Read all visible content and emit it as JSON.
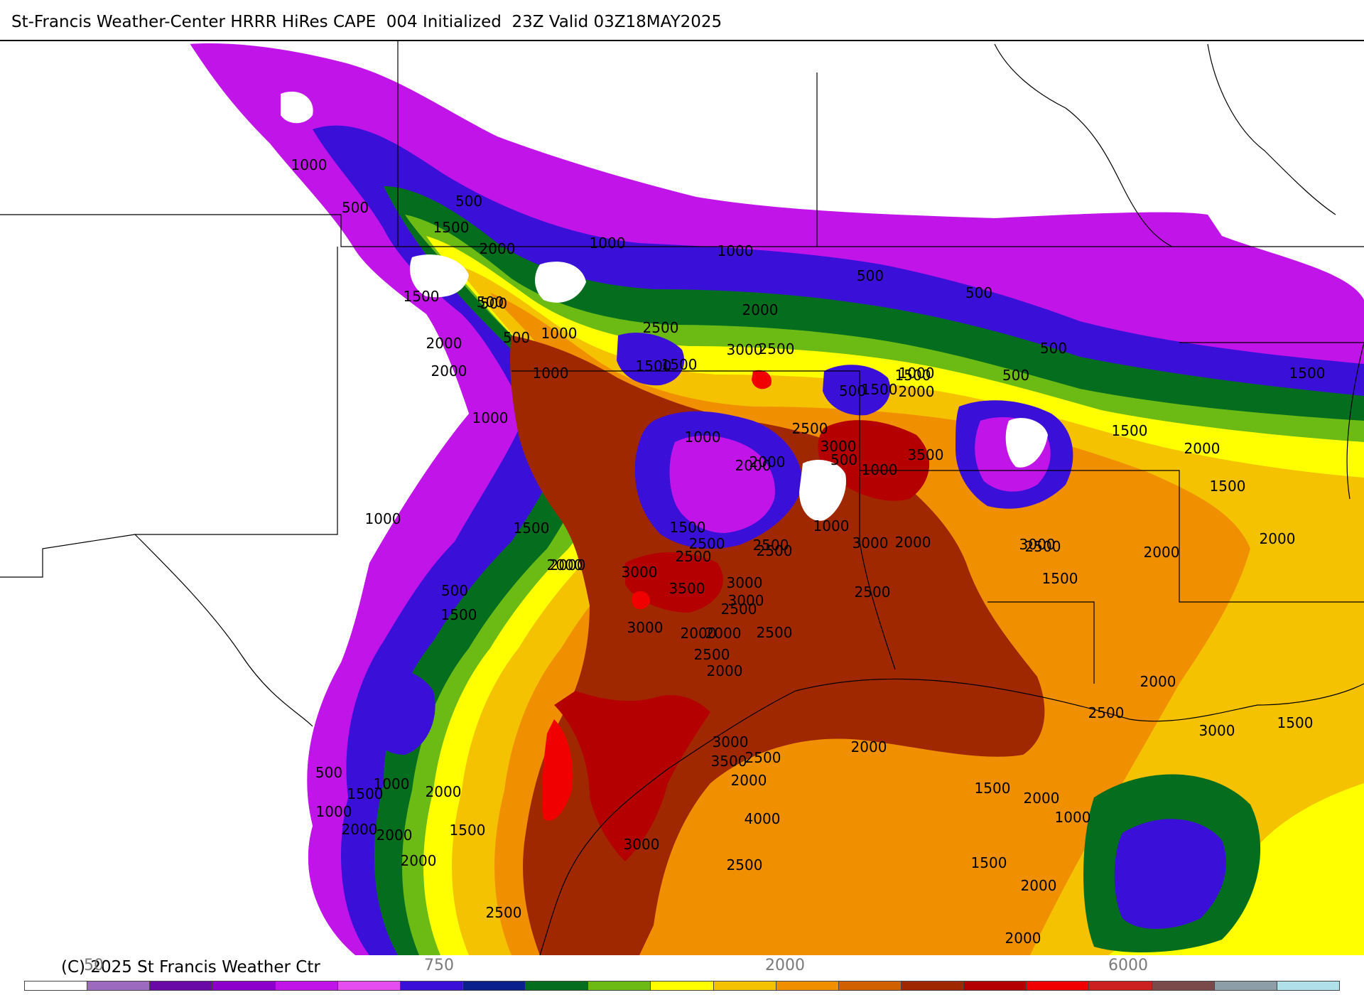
{
  "header": {
    "title": "St-Francis Weather-Center HRRR HiRes CAPE  004 Initialized  23Z Valid 03Z18MAY2025"
  },
  "footer": {
    "copyright": "(C) 2025 St Francis Weather Ctr",
    "ticks": [
      "50",
      "750",
      "2000",
      "6000"
    ]
  },
  "colorbar": {
    "colors": [
      "#ffffff",
      "#9c6bc0",
      "#6a0aa6",
      "#8d00cc",
      "#c014e8",
      "#e64df0",
      "#3a10d8",
      "#0a208c",
      "#056e1e",
      "#6cbb15",
      "#ffff00",
      "#f4c200",
      "#f09000",
      "#d06000",
      "#a02800",
      "#b40000",
      "#f00000",
      "#cc2020",
      "#7a4a4a",
      "#8c9ea8",
      "#b0e0ea"
    ]
  },
  "map": {
    "legend_colors": {
      "below_threshold": "#ffffff",
      "c250": "#c014e8",
      "c500": "#3a10d8",
      "c750": "#0a208c",
      "c1000": "#056e1e",
      "c1250": "#6cbb15",
      "c1500": "#ffff00",
      "c2000": "#f4c200",
      "c2500": "#f09000",
      "c3000": "#a02800",
      "c3500": "#b40000",
      "c4000": "#f00000"
    },
    "labels": [
      "1000",
      "500",
      "500",
      "1500",
      "2000",
      "1000",
      "500",
      "1000",
      "500",
      "500",
      "1500",
      "500",
      "2000",
      "500",
      "1000",
      "2500",
      "2000",
      "1500",
      "2500",
      "500",
      "3000",
      "1500",
      "1000",
      "1500",
      "2000",
      "2000",
      "1000",
      "1000",
      "2000",
      "1500",
      "500",
      "1500",
      "500",
      "2500",
      "3000",
      "3500",
      "1000",
      "2000",
      "500",
      "1000",
      "1500",
      "2000",
      "1500",
      "2500",
      "1500",
      "2000",
      "1000",
      "3000",
      "2500",
      "3000",
      "2000",
      "2500",
      "1500",
      "2000",
      "2500",
      "2000",
      "3000",
      "3500",
      "2500",
      "500",
      "1000",
      "1500",
      "2000",
      "2500",
      "3000",
      "2000",
      "2000",
      "2500",
      "2500",
      "2000",
      "3000",
      "3000",
      "2500",
      "2000",
      "3000",
      "3500",
      "2500",
      "2000",
      "1500",
      "500",
      "1000",
      "1500",
      "2000",
      "1000",
      "2000",
      "2000",
      "1500",
      "3000",
      "4000",
      "2500",
      "1500",
      "2000",
      "2500",
      "2000",
      "3000",
      "1500",
      "2000",
      "1500",
      "1000",
      "2000",
      "2500",
      "2000"
    ]
  }
}
